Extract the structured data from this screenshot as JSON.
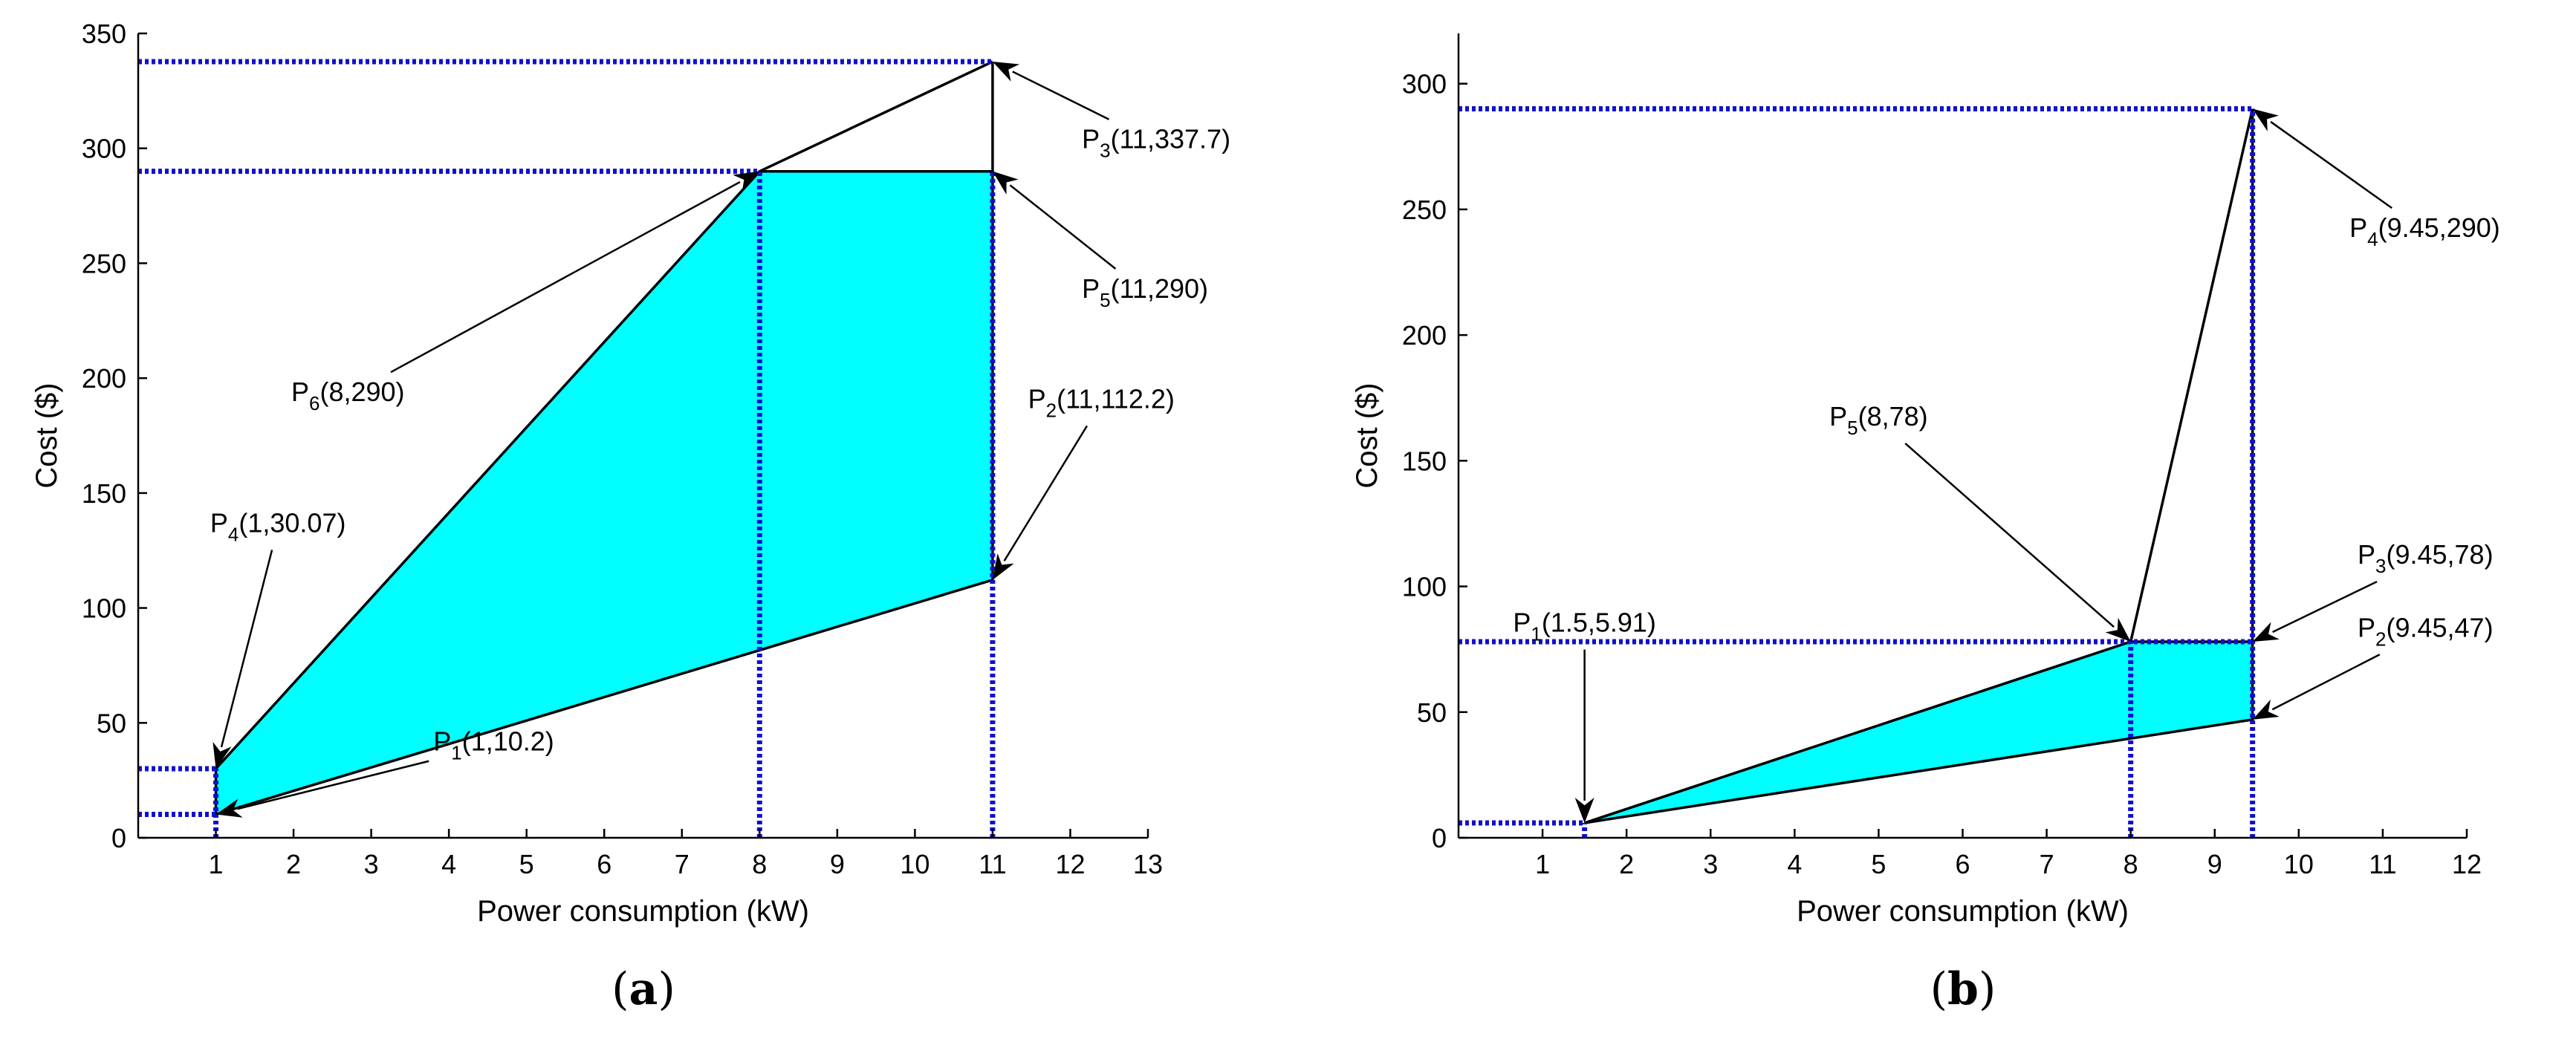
{
  "chart_data": [
    {
      "id": "a",
      "type": "area",
      "panel_label": "a",
      "xlabel": "Power consumption (kW)",
      "ylabel": "Cost ($)",
      "xlim": [
        0,
        13
      ],
      "ylim": [
        0,
        350
      ],
      "xticks": [
        1,
        2,
        3,
        4,
        5,
        6,
        7,
        8,
        9,
        10,
        11,
        12,
        13
      ],
      "yticks": [
        0,
        50,
        100,
        150,
        200,
        250,
        300,
        350
      ],
      "grid": false,
      "region": [
        [
          1,
          10.2
        ],
        [
          11,
          112.2
        ],
        [
          11,
          290
        ],
        [
          8,
          290
        ],
        [
          1,
          30.07
        ]
      ],
      "edges": [
        [
          [
            8,
            290
          ],
          [
            11,
            337.7
          ]
        ],
        [
          [
            11,
            337.7
          ],
          [
            11,
            290
          ]
        ]
      ],
      "guides": {
        "horizontal": [
          [
            10.2,
            1
          ],
          [
            30.07,
            1
          ],
          [
            290,
            8
          ],
          [
            337.7,
            11
          ]
        ],
        "vertical": [
          [
            1,
            30.07
          ],
          [
            8,
            290
          ],
          [
            11,
            290
          ]
        ]
      },
      "points": [
        {
          "id": "P1",
          "main": "P",
          "sub": "1",
          "coords": "(1,10.2)",
          "x": 1,
          "y": 10.2,
          "label_x": 3.8,
          "label_y": 38,
          "anchor": "start"
        },
        {
          "id": "P2",
          "main": "P",
          "sub": "2",
          "coords": "(11,112.2)",
          "x": 11,
          "y": 112.2,
          "label_x": 12.4,
          "label_y": 187,
          "anchor": "middle"
        },
        {
          "id": "P3",
          "main": "P",
          "sub": "3",
          "coords": "(11,337.7)",
          "x": 11,
          "y": 337.7,
          "label_x": 12.15,
          "label_y": 300,
          "anchor": "start"
        },
        {
          "id": "P4",
          "main": "P",
          "sub": "4",
          "coords": "(1,30.07)",
          "x": 1,
          "y": 30.07,
          "label_x": 1.8,
          "label_y": 133,
          "anchor": "middle"
        },
        {
          "id": "P5",
          "main": "P",
          "sub": "5",
          "coords": "(11,290)",
          "x": 11,
          "y": 290,
          "label_x": 12.15,
          "label_y": 235,
          "anchor": "start"
        },
        {
          "id": "P6",
          "main": "P",
          "sub": "6",
          "coords": "(8,290)",
          "x": 8,
          "y": 290,
          "label_x": 2.7,
          "label_y": 190,
          "anchor": "middle"
        }
      ]
    },
    {
      "id": "b",
      "type": "area",
      "panel_label": "b",
      "xlabel": "Power consumption (kW)",
      "ylabel": "Cost ($)",
      "xlim": [
        0,
        12
      ],
      "ylim": [
        0,
        320
      ],
      "xticks": [
        1,
        2,
        3,
        4,
        5,
        6,
        7,
        8,
        9,
        10,
        11,
        12
      ],
      "yticks": [
        0,
        50,
        100,
        150,
        200,
        250,
        300
      ],
      "grid": false,
      "region": [
        [
          1.5,
          5.91
        ],
        [
          9.45,
          47
        ],
        [
          9.45,
          78
        ],
        [
          8,
          78
        ]
      ],
      "edges": [
        [
          [
            8,
            78
          ],
          [
            9.45,
            290
          ]
        ],
        [
          [
            9.45,
            290
          ],
          [
            9.45,
            78
          ]
        ]
      ],
      "guides": {
        "horizontal": [
          [
            5.91,
            1.5
          ],
          [
            78,
            9.45
          ],
          [
            290,
            9.45
          ]
        ],
        "vertical": [
          [
            1.5,
            5.91
          ],
          [
            8,
            78
          ],
          [
            9.45,
            290
          ]
        ]
      },
      "points": [
        {
          "id": "P1",
          "main": "P",
          "sub": "1",
          "coords": "(1.5,5.91)",
          "x": 1.5,
          "y": 5.91,
          "label_x": 1.5,
          "label_y": 82,
          "anchor": "middle"
        },
        {
          "id": "P2",
          "main": "P",
          "sub": "2",
          "coords": "(9.45,47)",
          "x": 9.45,
          "y": 47,
          "label_x": 10.7,
          "label_y": 80,
          "anchor": "start"
        },
        {
          "id": "P3",
          "main": "P",
          "sub": "3",
          "coords": "(9.45,78)",
          "x": 9.45,
          "y": 78,
          "label_x": 10.7,
          "label_y": 109,
          "anchor": "start"
        },
        {
          "id": "P4",
          "main": "P",
          "sub": "4",
          "coords": "(9.45,290)",
          "x": 9.45,
          "y": 290,
          "label_x": 11.5,
          "label_y": 239,
          "anchor": "middle"
        },
        {
          "id": "P5",
          "main": "P",
          "sub": "5",
          "coords": "(8,78)",
          "x": 8,
          "y": 78,
          "label_x": 5.0,
          "label_y": 164,
          "anchor": "middle"
        }
      ]
    }
  ]
}
